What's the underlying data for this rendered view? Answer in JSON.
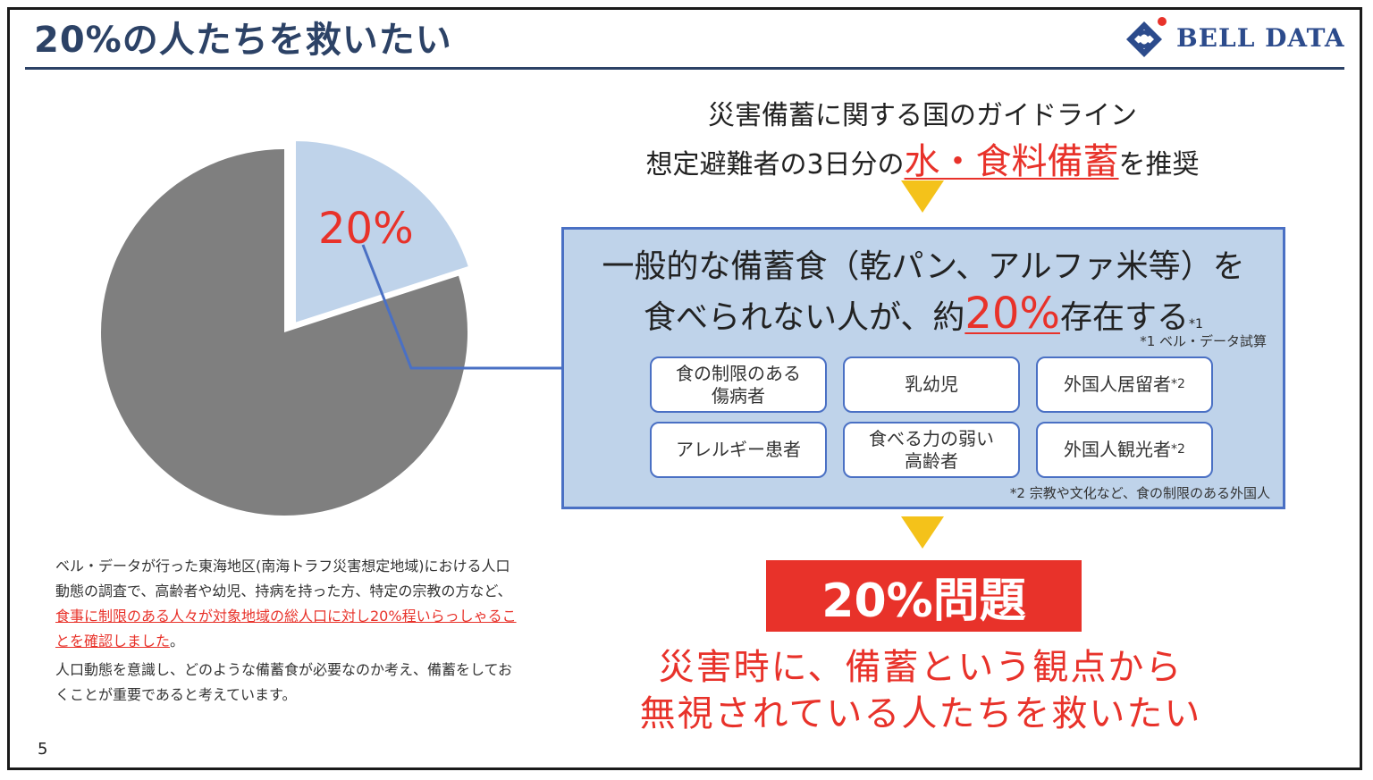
{
  "slide": {
    "title": "20%の人たちを救いたい",
    "page_number": "5",
    "colors": {
      "title": "#2c4266",
      "accent": "#e8322a",
      "box_fill": "#bfd3ea",
      "box_border": "#4a70c4",
      "arrow": "#f4c21a",
      "pie_main": "#7f7f7f",
      "pie_slice": "#bfd3ea"
    }
  },
  "logo": {
    "icon": "bell-data-logo-icon",
    "text": "BELL DATA"
  },
  "pie": {
    "slice_percent": 20,
    "label": "20%"
  },
  "guideline": {
    "line1": "災害備蓄に関する国のガイドライン",
    "line2_pre": "想定避難者の3日分の",
    "line2_accent": "水・食料備蓄",
    "line2_post": "を推奨"
  },
  "box": {
    "line1": "一般的な備蓄食（乾パン、アルファ米等）を",
    "line2_pre": "食べられない人が、約",
    "line2_accent": "20%",
    "line2_post": "存在する",
    "line2_sup": "*1",
    "note1": "*1 ベル・データ試算",
    "note2": "*2 宗教や文化など、食の制限のある外国人",
    "items": [
      {
        "line1": "食の制限のある",
        "line2": "傷病者",
        "sup": ""
      },
      {
        "line1": "乳幼児",
        "line2": "",
        "sup": ""
      },
      {
        "line1": "外国人居留者",
        "line2": "",
        "sup": "*2"
      },
      {
        "line1": "アレルギー患者",
        "line2": "",
        "sup": ""
      },
      {
        "line1": "食べる力の弱い",
        "line2": "高齢者",
        "sup": ""
      },
      {
        "line1": "外国人観光者",
        "line2": "",
        "sup": "*2"
      }
    ]
  },
  "problem": {
    "label": "20%問題",
    "claim1": "災害時に、備蓄という観点から",
    "claim2": "無視されている人たちを救いたい"
  },
  "description": {
    "p1_a": "ベル・データが行った東海地区(南海トラフ災害想定地域)における人口動態の調査で、高齢者や幼児、持病を持った方、特定の宗教の方など、",
    "p1_red": "食事に制限のある人々が対象地域の総人口に対し20%程いらっしゃることを確認しました",
    "p1_b": "。",
    "p2": "人口動態を意識し、どのような備蓄食が必要なのか考え、備蓄をしておくことが重要であると考えています。"
  }
}
